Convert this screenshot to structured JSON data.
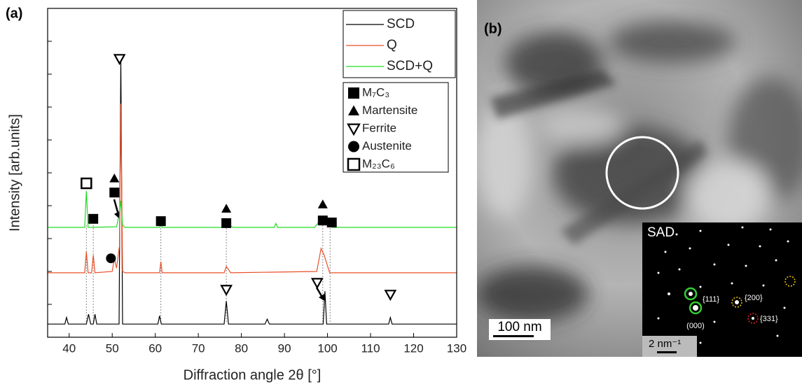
{
  "chart_data": {
    "type": "line",
    "panel_label": "(a)",
    "xlabel": "Diffraction angle 2θ [°]",
    "ylabel": "Intensity [arb.units]",
    "xlim": [
      35,
      130
    ],
    "xticks": [
      40,
      50,
      60,
      70,
      80,
      90,
      100,
      110,
      120,
      130
    ],
    "ylim": [
      0,
      100
    ],
    "yticks": [
      10,
      20,
      30,
      40,
      50,
      60,
      70,
      80,
      90
    ],
    "series": [
      {
        "name": "SCD",
        "color": "#000000",
        "x": [
          35,
          39,
          39.4,
          39.8,
          44,
          44.5,
          45,
          45.6,
          46,
          46.4,
          51.6,
          52,
          52.4,
          60.6,
          61,
          61.4,
          76,
          76.5,
          77,
          85.5,
          86,
          86.5,
          99,
          99.4,
          99.8,
          114.2,
          114.6,
          115,
          130
        ],
        "values": [
          4,
          4,
          6,
          4,
          4,
          7,
          4,
          4,
          7,
          4,
          4,
          84.5,
          4,
          4,
          6.5,
          4,
          4,
          11,
          4,
          4,
          5.5,
          4,
          4,
          14,
          4,
          4,
          6,
          4,
          4
        ]
      },
      {
        "name": "Q",
        "color": "#e8502a",
        "x": [
          35,
          43.6,
          44,
          44.4,
          45.2,
          45.6,
          46,
          50,
          50.5,
          51,
          51.7,
          52,
          52.4,
          53,
          61,
          61.3,
          61.6,
          76,
          76.5,
          77.5,
          97.5,
          98.5,
          99.2,
          100.5,
          130
        ],
        "values": [
          19.6,
          19.6,
          26,
          19.6,
          19.6,
          25,
          19.6,
          20,
          24,
          21,
          28,
          71,
          20,
          19.6,
          19.6,
          23,
          19.6,
          19.6,
          21.5,
          19.6,
          20,
          27,
          25,
          19.6,
          19.6
        ]
      },
      {
        "name": "SCD+Q",
        "color": "#22dd22",
        "x": [
          35,
          43.6,
          44,
          44.4,
          51,
          51.7,
          52,
          52.4,
          53,
          61,
          61.3,
          61.6,
          76,
          76.8,
          78,
          87.6,
          88,
          88.4,
          97,
          98.5,
          99.5,
          101,
          130
        ],
        "values": [
          33.4,
          33.4,
          44.5,
          33.4,
          33.6,
          38,
          41.5,
          34,
          33.4,
          33.4,
          34.5,
          33.4,
          33.4,
          34.6,
          33.4,
          33.4,
          34.6,
          33.4,
          33.4,
          35.8,
          35.6,
          33.4,
          33.4
        ]
      }
    ],
    "guides_x": [
      44.0,
      45.6,
      61.3,
      76.5,
      98.9,
      100.6
    ],
    "phases": [
      {
        "name": "M₇C₃",
        "shape": "square"
      },
      {
        "name": "Martensite",
        "shape": "triangle"
      },
      {
        "name": "Ferrite",
        "shape": "triangle-down-open"
      },
      {
        "name": "Austenite",
        "shape": "circle"
      },
      {
        "name": "M₂₃C₆",
        "shape": "square-open"
      }
    ],
    "phase_markers": [
      {
        "shape": "square-open",
        "x": 44.0,
        "y": 46.8
      },
      {
        "shape": "square",
        "x": 45.6,
        "y": 36
      },
      {
        "shape": "triangle",
        "x": 50.5,
        "y": 48.3
      },
      {
        "shape": "square",
        "x": 50.5,
        "y": 44
      },
      {
        "shape": "square",
        "x": 61.3,
        "y": 35.3
      },
      {
        "shape": "triangle",
        "x": 76.5,
        "y": 39.1
      },
      {
        "shape": "square",
        "x": 76.5,
        "y": 34.7
      },
      {
        "shape": "triangle",
        "x": 98.9,
        "y": 40.4
      },
      {
        "shape": "square",
        "x": 98.9,
        "y": 35.5
      },
      {
        "shape": "square",
        "x": 101.0,
        "y": 34.9
      },
      {
        "shape": "circle",
        "x": 49.7,
        "y": 24
      },
      {
        "shape": "triangle-down-open",
        "x": 51.7,
        "y": 84.7
      },
      {
        "shape": "triangle-down-open",
        "x": 76.5,
        "y": 14.5
      },
      {
        "shape": "triangle-down-open",
        "x": 97.6,
        "y": 16.6
      },
      {
        "shape": "triangle-down-open",
        "x": 114.6,
        "y": 13
      }
    ]
  },
  "image": {
    "panel_label": "(b)",
    "scale_bar": "100 nm",
    "inset_title": "SAD",
    "inset_scale": "2 nm⁻¹",
    "spots": [
      "{111}",
      "{200}",
      "{331}",
      "(000)"
    ]
  }
}
